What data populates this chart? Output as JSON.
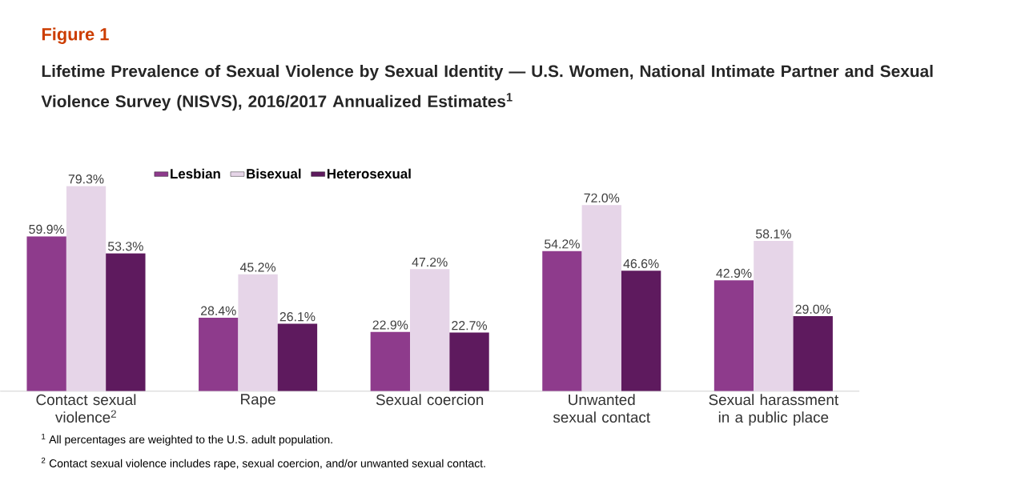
{
  "chart_data": {
    "type": "bar",
    "title": "Figure 1",
    "subtitle": "Lifetime Prevalence of Sexual Violence by Sexual Identity — U.S. Women, National Intimate Partner and Sexual Violence Survey (NISVS), 2016/2017 Annualized Estimates$^{1}$",
    "categories": [
      "Contact sexual violence$^{2}$",
      "Rape",
      "Sexual coercion",
      "Unwanted sexual contact",
      "Sexual harassment in a public place"
    ],
    "series": [
      {
        "name": "Lesbian",
        "color": "#8e3b8c",
        "values": [
          59.9,
          28.4,
          22.9,
          54.2,
          42.9
        ],
        "value_labels": [
          "59.9%",
          "28.4%",
          "22.9%",
          "54.2%",
          "42.9%"
        ]
      },
      {
        "name": "Bisexual",
        "color": "#e6d5e8",
        "values": [
          79.3,
          45.2,
          47.2,
          72.0,
          58.1
        ],
        "value_labels": [
          "79.3%",
          "45.2%",
          "47.2%",
          "72.0%",
          "58.1%"
        ]
      },
      {
        "name": "Heterosexual",
        "color": "#5e1a5e",
        "values": [
          53.3,
          26.1,
          22.7,
          46.6,
          29.0
        ],
        "value_labels": [
          "53.3%",
          "26.1%",
          "22.7%",
          "46.6%",
          "29.0%"
        ]
      }
    ],
    "legend": "top",
    "annotations": [
      "$^{1}$ All percentages are weighted to the U.S. adult population.",
      "$^{2}$ Contact sexual violence includes rape, sexual coercion, and/or unwanted sexual contact."
    ]
  }
}
